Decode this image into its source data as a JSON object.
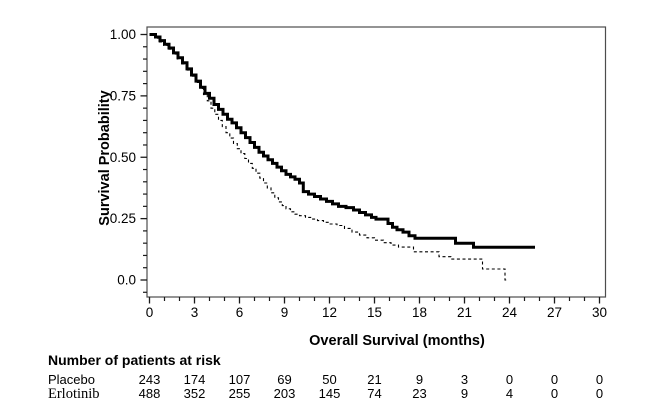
{
  "colors": {
    "background": "#ffffff",
    "frame": "#4d4d4d",
    "tick": "#1a1a1a",
    "curve": "#000000",
    "text": "#000000"
  },
  "chart_data": {
    "type": "line",
    "subtype": "kaplan-meier-step",
    "title": "",
    "xlabel": "Overall Survival (months)",
    "ylabel": "Survival Probability",
    "xlim": [
      0,
      30
    ],
    "ylim": [
      0.0,
      1.0
    ],
    "grid": false,
    "legend": "none",
    "x_major_ticks": [
      {
        "value": 0,
        "label": "0"
      },
      {
        "value": 3,
        "label": "3"
      },
      {
        "value": 6,
        "label": "6"
      },
      {
        "value": 9,
        "label": "9"
      },
      {
        "value": 12,
        "label": "12"
      },
      {
        "value": 15,
        "label": "15"
      },
      {
        "value": 18,
        "label": "18"
      },
      {
        "value": 21,
        "label": "21"
      },
      {
        "value": 24,
        "label": "24"
      },
      {
        "value": 27,
        "label": "27"
      },
      {
        "value": 30,
        "label": "30"
      }
    ],
    "x_minor_ticks": [
      1,
      2,
      4,
      5,
      7,
      8,
      10,
      11,
      13,
      14,
      16,
      17,
      19,
      20,
      22,
      23,
      25,
      26,
      28,
      29
    ],
    "y_major_ticks": [
      {
        "value": 1.0,
        "label": "1.00"
      },
      {
        "value": 0.75,
        "label": "0.75"
      },
      {
        "value": 0.5,
        "label": "0.50"
      },
      {
        "value": 0.25,
        "label": "0.25"
      },
      {
        "value": 0.0,
        "label": "0.0"
      }
    ],
    "y_minor_ticks": [
      -0.05,
      0.05,
      0.1,
      0.15,
      0.2,
      0.3,
      0.35,
      0.4,
      0.45,
      0.55,
      0.6,
      0.65,
      0.7,
      0.8,
      0.85,
      0.9,
      0.95
    ],
    "series": [
      {
        "name": "Erlotinib",
        "line_style": "solid",
        "line_width": "thick",
        "color": "#000000",
        "points": [
          [
            0,
            1.0
          ],
          [
            0.4,
            0.99
          ],
          [
            0.7,
            0.975
          ],
          [
            1.0,
            0.96
          ],
          [
            1.3,
            0.945
          ],
          [
            1.6,
            0.925
          ],
          [
            1.9,
            0.905
          ],
          [
            2.2,
            0.885
          ],
          [
            2.5,
            0.86
          ],
          [
            2.8,
            0.835
          ],
          [
            3.1,
            0.81
          ],
          [
            3.4,
            0.785
          ],
          [
            3.7,
            0.76
          ],
          [
            4.0,
            0.74
          ],
          [
            4.3,
            0.715
          ],
          [
            4.6,
            0.695
          ],
          [
            4.9,
            0.675
          ],
          [
            5.2,
            0.655
          ],
          [
            5.5,
            0.64
          ],
          [
            5.8,
            0.62
          ],
          [
            6.1,
            0.6
          ],
          [
            6.4,
            0.58
          ],
          [
            6.7,
            0.56
          ],
          [
            7.0,
            0.54
          ],
          [
            7.3,
            0.52
          ],
          [
            7.6,
            0.505
          ],
          [
            7.9,
            0.49
          ],
          [
            8.2,
            0.475
          ],
          [
            8.5,
            0.46
          ],
          [
            8.8,
            0.445
          ],
          [
            9.1,
            0.43
          ],
          [
            9.4,
            0.42
          ],
          [
            9.7,
            0.41
          ],
          [
            10.0,
            0.395
          ],
          [
            10.25,
            0.36
          ],
          [
            10.6,
            0.35
          ],
          [
            11.0,
            0.34
          ],
          [
            11.4,
            0.33
          ],
          [
            11.8,
            0.32
          ],
          [
            12.2,
            0.31
          ],
          [
            12.6,
            0.3
          ],
          [
            13.1,
            0.295
          ],
          [
            13.6,
            0.285
          ],
          [
            14.0,
            0.275
          ],
          [
            14.4,
            0.265
          ],
          [
            14.8,
            0.255
          ],
          [
            15.1,
            0.248
          ],
          [
            15.9,
            0.23
          ],
          [
            16.2,
            0.215
          ],
          [
            16.5,
            0.205
          ],
          [
            16.9,
            0.195
          ],
          [
            17.3,
            0.18
          ],
          [
            17.7,
            0.17
          ],
          [
            20.4,
            0.15
          ],
          [
            21.6,
            0.133
          ],
          [
            25.7,
            0.133
          ]
        ]
      },
      {
        "name": "Placebo",
        "line_style": "dashed",
        "line_width": "thin",
        "color": "#000000",
        "points": [
          [
            0,
            1.0
          ],
          [
            0.35,
            0.985
          ],
          [
            0.65,
            0.97
          ],
          [
            0.95,
            0.955
          ],
          [
            1.25,
            0.94
          ],
          [
            1.55,
            0.92
          ],
          [
            1.85,
            0.9
          ],
          [
            2.15,
            0.88
          ],
          [
            2.45,
            0.855
          ],
          [
            2.75,
            0.83
          ],
          [
            3.05,
            0.805
          ],
          [
            3.35,
            0.78
          ],
          [
            3.6,
            0.755
          ],
          [
            3.85,
            0.73
          ],
          [
            4.1,
            0.7
          ],
          [
            4.35,
            0.675
          ],
          [
            4.6,
            0.65
          ],
          [
            4.85,
            0.625
          ],
          [
            5.1,
            0.6
          ],
          [
            5.35,
            0.578
          ],
          [
            5.6,
            0.556
          ],
          [
            5.85,
            0.535
          ],
          [
            6.1,
            0.515
          ],
          [
            6.35,
            0.495
          ],
          [
            6.6,
            0.475
          ],
          [
            6.85,
            0.455
          ],
          [
            7.1,
            0.435
          ],
          [
            7.35,
            0.415
          ],
          [
            7.6,
            0.395
          ],
          [
            7.85,
            0.375
          ],
          [
            8.1,
            0.355
          ],
          [
            8.35,
            0.335
          ],
          [
            8.6,
            0.318
          ],
          [
            8.85,
            0.303
          ],
          [
            9.1,
            0.29
          ],
          [
            9.4,
            0.278
          ],
          [
            9.7,
            0.268
          ],
          [
            10.0,
            0.262
          ],
          [
            10.4,
            0.255
          ],
          [
            10.8,
            0.248
          ],
          [
            11.2,
            0.242
          ],
          [
            11.6,
            0.235
          ],
          [
            12.0,
            0.228
          ],
          [
            12.5,
            0.222
          ],
          [
            13.0,
            0.21
          ],
          [
            13.5,
            0.195
          ],
          [
            14.0,
            0.183
          ],
          [
            14.5,
            0.172
          ],
          [
            15.0,
            0.162
          ],
          [
            15.6,
            0.152
          ],
          [
            16.1,
            0.142
          ],
          [
            16.6,
            0.134
          ],
          [
            17.6,
            0.115
          ],
          [
            19.3,
            0.095
          ],
          [
            20.1,
            0.085
          ],
          [
            22.2,
            0.045
          ],
          [
            23.7,
            0.0
          ],
          [
            23.85,
            0.0
          ]
        ]
      }
    ]
  },
  "risk_table": {
    "title": "Number of patients at risk",
    "times": [
      0,
      3,
      6,
      9,
      12,
      15,
      18,
      21,
      24,
      27,
      30
    ],
    "rows": [
      {
        "label": "Placebo",
        "counts": [
          243,
          174,
          107,
          69,
          50,
          21,
          9,
          3,
          0,
          0,
          0
        ]
      },
      {
        "label": "Erlotinib",
        "counts": [
          488,
          352,
          255,
          203,
          145,
          74,
          23,
          9,
          4,
          0,
          0
        ]
      }
    ]
  }
}
